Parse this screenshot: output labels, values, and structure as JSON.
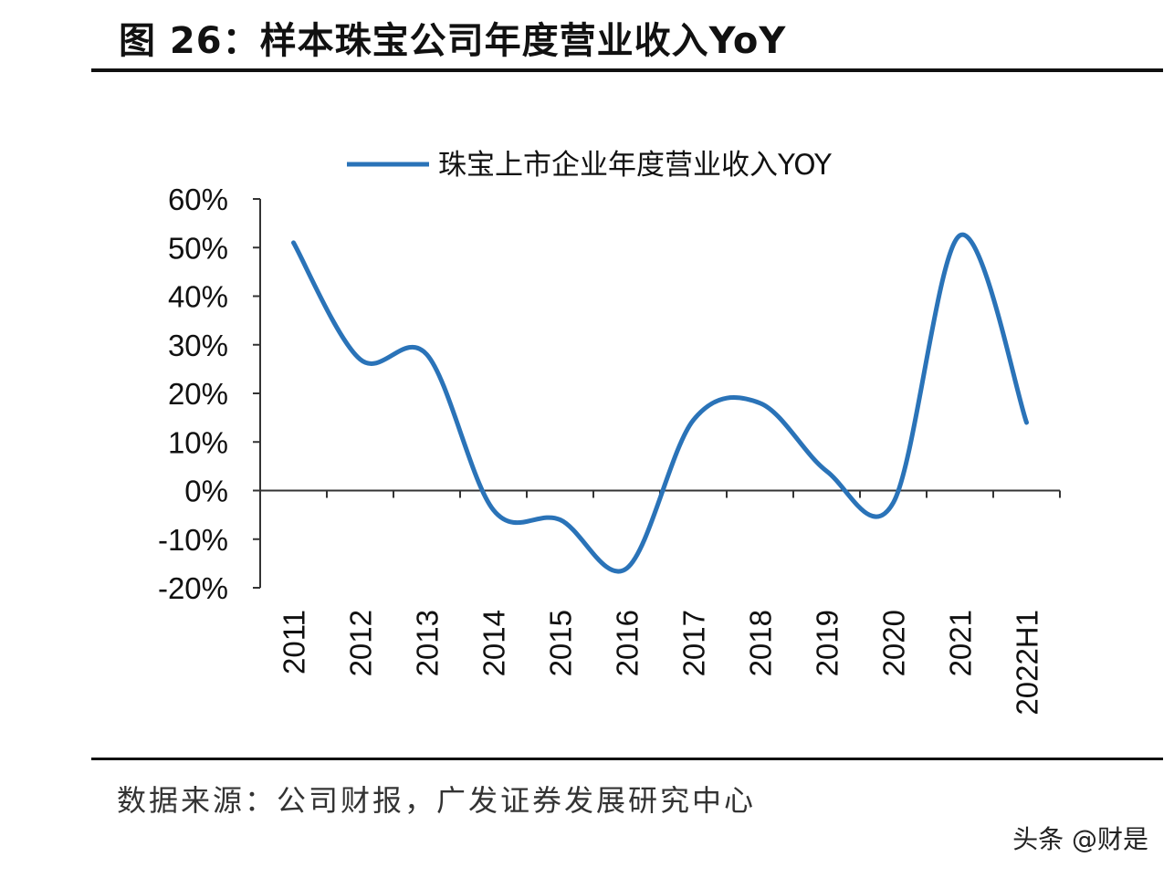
{
  "title": "图 26：样本珠宝公司年度营业收入YoY",
  "source": "数据来源：公司财报，广发证券发展研究中心",
  "watermark": "头条 @财是",
  "chart_data": {
    "type": "line",
    "title": "",
    "xlabel": "",
    "ylabel": "",
    "categories": [
      "2011",
      "2012",
      "2013",
      "2014",
      "2015",
      "2016",
      "2017",
      "2018",
      "2019",
      "2020",
      "2021",
      "2022H1"
    ],
    "series": [
      {
        "name": "珠宝上市企业年度营业收入YOY",
        "values": [
          51,
          27,
          28,
          -4,
          -6,
          -16,
          14.5,
          18,
          4,
          -2.5,
          52.5,
          14
        ],
        "color": "#2a73b8"
      }
    ],
    "ylim": [
      -20,
      60
    ],
    "yticks": [
      "-20%",
      "-10%",
      "0%",
      "10%",
      "20%",
      "30%",
      "40%",
      "50%",
      "60%"
    ],
    "grid": false,
    "legend": "top"
  }
}
